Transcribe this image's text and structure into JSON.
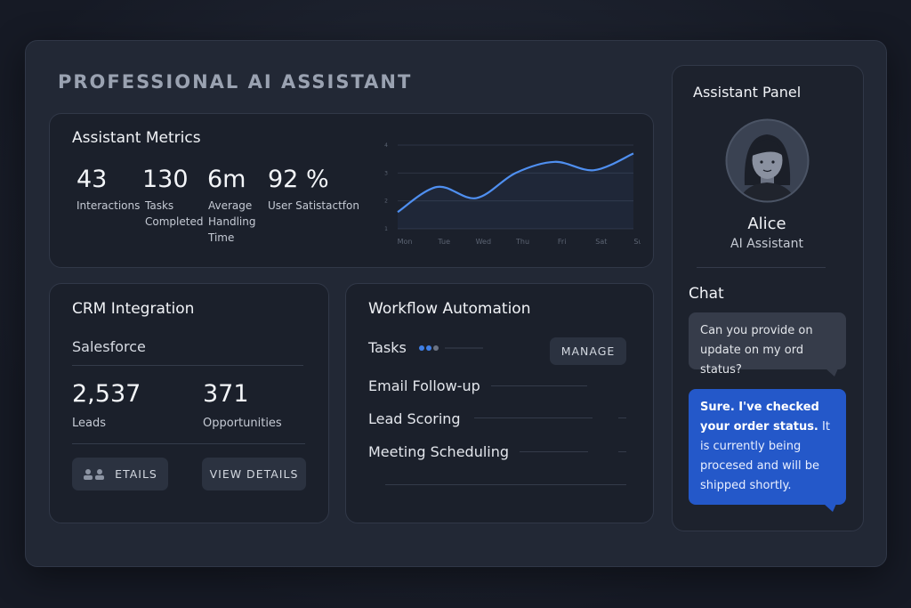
{
  "header": {
    "title": "PROFESSIONAL AI ASSISTANT"
  },
  "metrics": {
    "title": "Assistant Metrics",
    "items": [
      {
        "value": "43",
        "label": "Interactions"
      },
      {
        "value": "130",
        "label": "Tasks Completed"
      },
      {
        "value": "6m",
        "label": "Average Handling Time"
      },
      {
        "value": "92 %",
        "label": "User Satistactfon"
      }
    ],
    "chart": {
      "type": "line",
      "categories": [
        "Mon",
        "Tue",
        "Wed",
        "Thu",
        "Fri",
        "Sat",
        "Sun"
      ],
      "values": [
        1.6,
        2.5,
        2.1,
        3.0,
        3.4,
        3.1,
        3.7
      ],
      "color": "#4f8ff0",
      "ylim": [
        1,
        4
      ],
      "yticks": [
        1,
        2,
        3,
        4
      ],
      "grid": true
    }
  },
  "crm": {
    "title": "CRM Integration",
    "source": "Salesforce",
    "stats": [
      {
        "value": "2,537",
        "label": "Leads"
      },
      {
        "value": "371",
        "label": "Opportunities"
      }
    ],
    "buttons": [
      "ETAILS",
      "VIEW DETAILS"
    ]
  },
  "workflow": {
    "title": "Workflow Automation",
    "tasks_label": "Tasks",
    "button": "MANAGE",
    "items": [
      "Email Follow-up",
      "Lead Scoring",
      "Meeting Scheduling"
    ]
  },
  "assistant": {
    "title": "Assistant Panel",
    "name": "Alice",
    "role": "AI Assistant",
    "chat_title": "Chat",
    "messages": [
      {
        "from": "user",
        "text": "Can you provide on update on my ord status?"
      },
      {
        "from": "assistant",
        "bold": "Sure. I've checked your order status.",
        "text": "It is currently being procesed and will be shipped shortly."
      }
    ]
  }
}
